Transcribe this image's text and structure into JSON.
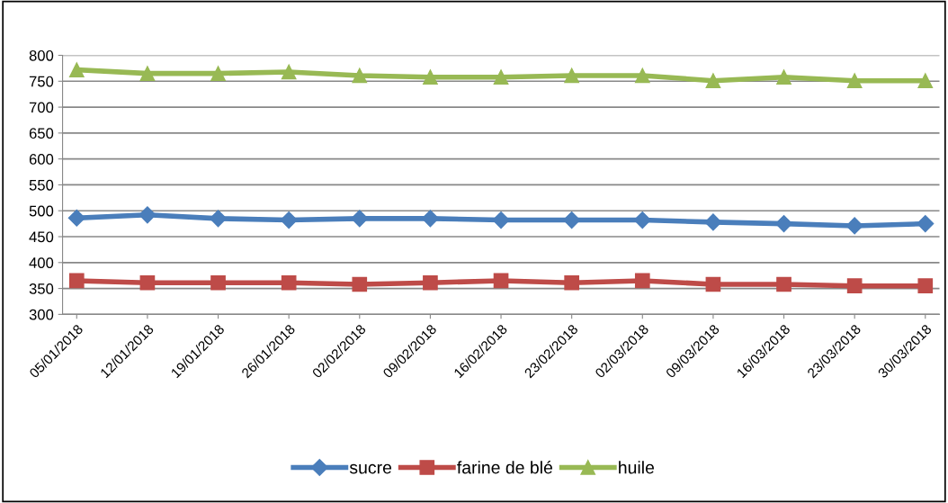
{
  "chart_data": {
    "type": "line",
    "categories": [
      "05/01/2018",
      "12/01/2018",
      "19/01/2018",
      "26/01/2018",
      "02/02/2018",
      "09/02/2018",
      "16/02/2018",
      "23/02/2018",
      "02/03/2018",
      "09/03/2018",
      "16/03/2018",
      "23/03/2018",
      "30/03/2018"
    ],
    "series": [
      {
        "name": "sucre",
        "color": "#4a7ebb",
        "marker": "diamond",
        "values": [
          486,
          492,
          485,
          482,
          485,
          485,
          482,
          482,
          482,
          478,
          475,
          471,
          475
        ]
      },
      {
        "name": "farine de blé",
        "color": "#be4b48",
        "marker": "square",
        "values": [
          365,
          361,
          361,
          361,
          358,
          361,
          365,
          361,
          365,
          358,
          358,
          355,
          355
        ]
      },
      {
        "name": "huile",
        "color": "#98b954",
        "marker": "triangle",
        "values": [
          772,
          765,
          765,
          768,
          761,
          758,
          758,
          761,
          761,
          751,
          758,
          751,
          751
        ]
      }
    ],
    "ylim": [
      300,
      800
    ],
    "yticks": [
      300,
      350,
      400,
      450,
      500,
      550,
      600,
      650,
      700,
      750,
      800
    ],
    "grid": "y",
    "legend": "bottom",
    "line_style": "solid"
  }
}
